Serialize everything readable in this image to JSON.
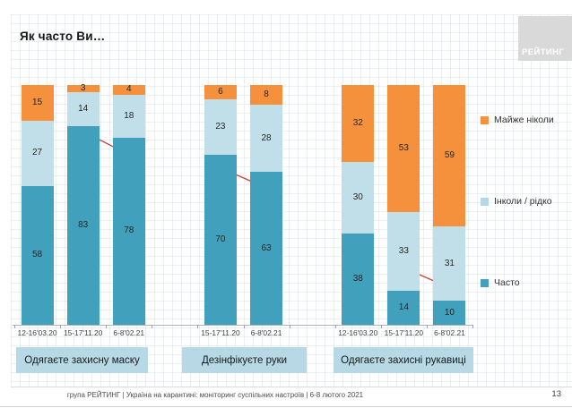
{
  "slide": {
    "logo_text": "РЕЙТИНГ",
    "footer": "група РЕЙТИНГ | Україна на карантині: моніторинг суспільних настроїв | 6-8 лютого 2021",
    "page_number": "13"
  },
  "legend": [
    {
      "label": "Майже ніколи",
      "color": "#f5913c"
    },
    {
      "label": "Інколи / рідко",
      "color": "#b3d8e6"
    },
    {
      "label": "Часто",
      "color": "#41a1bc"
    }
  ],
  "chart_data": {
    "type": "bar",
    "variant": "100%-stacked-column",
    "title": "Як часто Ви…",
    "ylim": [
      0,
      100
    ],
    "grid": false,
    "legend_position": "right",
    "series": [
      {
        "name": "Часто",
        "color": "#41a1bc"
      },
      {
        "name": "Інколи / рідко",
        "color": "#c1dfe9"
      },
      {
        "name": "Майже ніколи",
        "color": "#f5913c"
      }
    ],
    "groups": [
      {
        "label": "Одягаєте захисну маску",
        "bars": [
          {
            "period": "12-16'03.20",
            "values": [
              58,
              27,
              15
            ]
          },
          {
            "period": "15-17'11.20",
            "values": [
              83,
              14,
              3
            ]
          },
          {
            "period": "6-8'02.21",
            "values": [
              78,
              18,
              4
            ]
          }
        ]
      },
      {
        "label": "Дезінфікуєте руки",
        "bars": [
          {
            "period": "15-17'11.20",
            "values": [
              70,
              23,
              6
            ]
          },
          {
            "period": "6-8'02.21",
            "values": [
              63,
              28,
              8
            ]
          }
        ]
      },
      {
        "label": "Одягаєте захисні рукавиці",
        "bars": [
          {
            "period": "12-16'03.20",
            "values": [
              38,
              30,
              32
            ]
          },
          {
            "period": "15-17'11.20",
            "values": [
              14,
              33,
              53
            ]
          },
          {
            "period": "6-8'02.21",
            "values": [
              10,
              31,
              59
            ]
          }
        ]
      }
    ],
    "annotations": {
      "trend_arrows": [
        {
          "group": 0,
          "from_bar": 1,
          "to_bar": 2,
          "color": "#cf4337"
        },
        {
          "group": 1,
          "from_bar": 0,
          "to_bar": 1,
          "color": "#cf4337"
        },
        {
          "group": 2,
          "from_bar": 1,
          "to_bar": 2,
          "color": "#cf4337"
        }
      ]
    }
  }
}
